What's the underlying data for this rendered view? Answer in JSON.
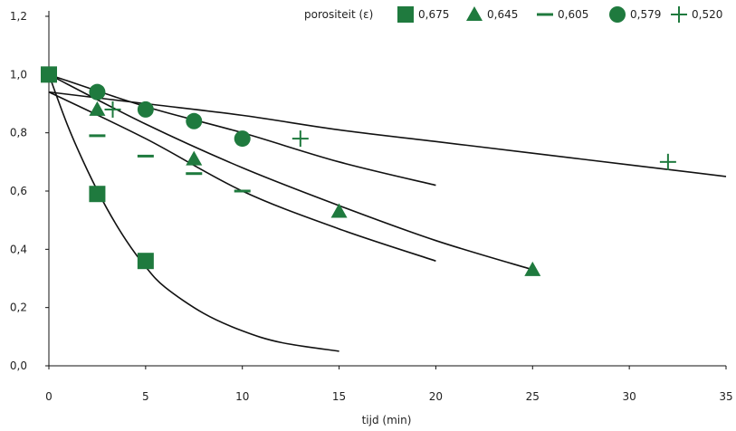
{
  "chart_data": {
    "type": "scatter",
    "title": "",
    "xlabel": "tijd (min)",
    "ylabel": "",
    "xlim": [
      0,
      35
    ],
    "ylim": [
      0,
      1.2
    ],
    "x_ticks": [
      "0",
      "5",
      "10",
      "15",
      "20",
      "25",
      "30",
      "35"
    ],
    "y_ticks": [
      "0,0",
      "0,2",
      "0,4",
      "0,6",
      "0,8",
      "1,0",
      "1,2"
    ],
    "grid": false,
    "marker_color": "#1f7a3e",
    "line_color": "#111111",
    "legend": {
      "title": "porositeit (ε)",
      "placement": "top-right"
    },
    "series": [
      {
        "name": "0,675",
        "marker": "square",
        "points": [
          [
            0,
            1.0
          ],
          [
            2.5,
            0.59
          ],
          [
            5,
            0.36
          ]
        ],
        "fit": [
          [
            0,
            1.0
          ],
          [
            1,
            0.82
          ],
          [
            2,
            0.67
          ],
          [
            3,
            0.54
          ],
          [
            4,
            0.43
          ],
          [
            5,
            0.34
          ],
          [
            6,
            0.27
          ],
          [
            8,
            0.18
          ],
          [
            10,
            0.12
          ],
          [
            12,
            0.08
          ],
          [
            15,
            0.05
          ]
        ]
      },
      {
        "name": "0,645",
        "marker": "triangle",
        "points": [
          [
            2.5,
            0.88
          ],
          [
            7.5,
            0.71
          ],
          [
            15,
            0.53
          ],
          [
            25,
            0.33
          ]
        ],
        "fit": [
          [
            0,
            1.0
          ],
          [
            5,
            0.83
          ],
          [
            10,
            0.68
          ],
          [
            15,
            0.55
          ],
          [
            20,
            0.43
          ],
          [
            25,
            0.33
          ]
        ]
      },
      {
        "name": "0,605",
        "marker": "dash",
        "points": [
          [
            2.5,
            0.79
          ],
          [
            5,
            0.72
          ],
          [
            7.5,
            0.66
          ],
          [
            10,
            0.6
          ]
        ],
        "fit": [
          [
            0,
            0.94
          ],
          [
            5,
            0.78
          ],
          [
            10,
            0.6
          ],
          [
            15,
            0.47
          ],
          [
            20,
            0.36
          ]
        ]
      },
      {
        "name": "0,579",
        "marker": "circle",
        "points": [
          [
            2.5,
            0.94
          ],
          [
            5,
            0.88
          ],
          [
            7.5,
            0.84
          ],
          [
            10,
            0.78
          ]
        ],
        "fit": [
          [
            0,
            1.0
          ],
          [
            5,
            0.89
          ],
          [
            10,
            0.8
          ],
          [
            15,
            0.7
          ],
          [
            20,
            0.62
          ]
        ]
      },
      {
        "name": "0,520",
        "marker": "plus",
        "points": [
          [
            3.3,
            0.88
          ],
          [
            13,
            0.78
          ],
          [
            32,
            0.7
          ]
        ],
        "fit": [
          [
            0,
            0.94
          ],
          [
            5,
            0.9
          ],
          [
            10,
            0.86
          ],
          [
            15,
            0.81
          ],
          [
            20,
            0.77
          ],
          [
            25,
            0.73
          ],
          [
            30,
            0.69
          ],
          [
            35,
            0.65
          ]
        ]
      }
    ]
  }
}
